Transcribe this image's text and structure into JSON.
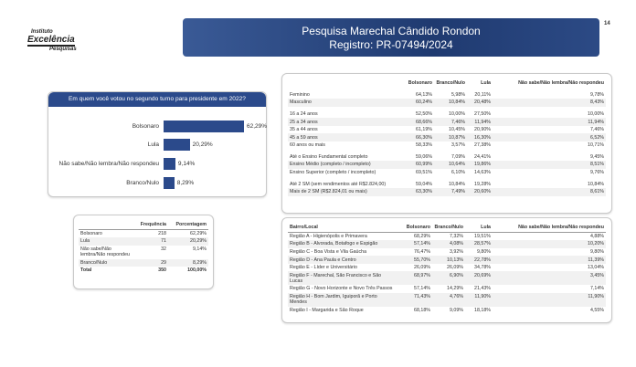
{
  "header": {
    "logo": [
      "Instituto",
      "Excelência",
      "Pesquisas"
    ],
    "title": "Pesquisa Marechal Cândido Rondon",
    "subtitle": "Registro: PR-07494/2024",
    "page_number": "14"
  },
  "chart_data": {
    "type": "bar",
    "orientation": "horizontal",
    "title": "Em quem você votou no segundo turno para presidente em 2022?",
    "categories": [
      "Bolsonaro",
      "Lula",
      "Não sabe/Não lembra/Não respondeu",
      "Branco/Nulo"
    ],
    "values": [
      62.29,
      20.29,
      9.14,
      8.29
    ],
    "value_labels": [
      "62,29%",
      "20,29%",
      "9,14%",
      "8,29%"
    ],
    "color": "#2b4a8b"
  },
  "frequency_table": {
    "columns": [
      "Frequência",
      "Porcentagem"
    ],
    "rows": [
      [
        "Bolsonaro",
        218,
        "62,29%"
      ],
      [
        "Lula",
        71,
        "20,29%"
      ],
      [
        "Não sabe/Não lembra/Não respondeu",
        32,
        "9,14%"
      ],
      [
        "Branco/Nulo",
        29,
        "8,29%"
      ],
      [
        "Total",
        350,
        "100,00%"
      ]
    ]
  },
  "demographics_table": {
    "columns": [
      "Bolsonaro",
      "Branco/Nulo",
      "Lula",
      "Não sabe/Não lembra/Não respondeu"
    ],
    "groups": [
      [
        [
          "Feminino",
          "64,13%",
          "5,98%",
          "20,11%",
          "9,78%"
        ],
        [
          "Masculino",
          "60,24%",
          "10,84%",
          "20,48%",
          "8,43%"
        ]
      ],
      [
        [
          "16 a 24 anos",
          "52,50%",
          "10,00%",
          "27,50%",
          "10,00%"
        ],
        [
          "25 a 34 anos",
          "68,66%",
          "7,46%",
          "11,94%",
          "11,94%"
        ],
        [
          "35 a 44 anos",
          "61,19%",
          "10,45%",
          "20,90%",
          "7,46%"
        ],
        [
          "45 a 59 anos",
          "66,30%",
          "10,87%",
          "16,30%",
          "6,52%"
        ],
        [
          "60 anos ou mais",
          "58,33%",
          "3,57%",
          "27,38%",
          "10,71%"
        ]
      ],
      [
        [
          "Até o Ensino Fundamental completo",
          "59,06%",
          "7,09%",
          "24,41%",
          "9,45%"
        ],
        [
          "Ensino Médio (completo / incompleto)",
          "60,99%",
          "10,64%",
          "19,86%",
          "8,51%"
        ],
        [
          "Ensino Superior (completo / incompleto)",
          "69,51%",
          "6,10%",
          "14,63%",
          "9,76%"
        ]
      ],
      [
        [
          "Até 2 SM (sem rendimentos até R$2.824,00)",
          "59,04%",
          "10,84%",
          "19,28%",
          "10,84%"
        ],
        [
          "Mais de 2 SM (R$2.824,01 ou mais)",
          "63,30%",
          "7,49%",
          "20,60%",
          "8,61%"
        ]
      ]
    ]
  },
  "neighborhood_table": {
    "columns": [
      "Bairro/Local",
      "Bolsonaro",
      "Branco/Nulo",
      "Lula",
      "Não sabe/Não lembra/Não respondeu"
    ],
    "rows": [
      [
        "Região A - Higienópolis e Primavera",
        "68,29%",
        "7,32%",
        "19,51%",
        "4,88%"
      ],
      [
        "Região B - Alvorada, Botafogo e Espigão",
        "57,14%",
        "4,08%",
        "28,57%",
        "10,20%"
      ],
      [
        "Região C - Boa Vista e Vila Gaúcha",
        "76,47%",
        "3,92%",
        "9,80%",
        "9,80%"
      ],
      [
        "Região D - Ana Paula e Centro",
        "55,70%",
        "10,13%",
        "22,78%",
        "11,39%"
      ],
      [
        "Região E - Líder e Universitário",
        "26,09%",
        "26,09%",
        "34,78%",
        "13,04%"
      ],
      [
        "Região F - Marechal, São Francisco e São Lucas",
        "68,97%",
        "6,90%",
        "20,69%",
        "3,45%"
      ],
      [
        "Região G - Novo Horizonte e Novo Três Passos",
        "57,14%",
        "14,29%",
        "21,43%",
        "7,14%"
      ],
      [
        "Região H - Bom Jardim, Iguiporã e Porto Mendes",
        "71,43%",
        "4,76%",
        "11,90%",
        "11,90%"
      ],
      [
        "Região I - Margarida e São Roque",
        "68,18%",
        "9,09%",
        "18,18%",
        "4,55%"
      ]
    ]
  }
}
